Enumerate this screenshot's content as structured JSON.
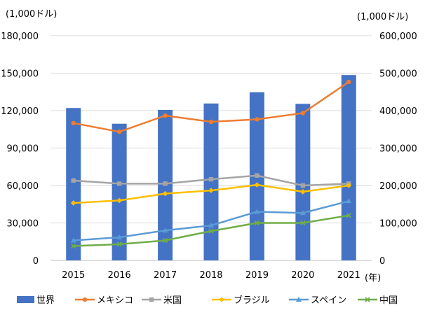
{
  "chart_data": {
    "type": "bar+line",
    "left_unit": "(1,000ドル)",
    "right_unit": "(1,000ドル)",
    "x_unit": "(年)",
    "categories": [
      "2015",
      "2016",
      "2017",
      "2018",
      "2019",
      "2020",
      "2021"
    ],
    "left_ticks": [
      "0",
      "30,000",
      "60,000",
      "90,000",
      "120,000",
      "150,000",
      "180,000"
    ],
    "right_ticks": [
      "0",
      "100,000",
      "200,000",
      "300,000",
      "400,000",
      "500,000",
      "600,000"
    ],
    "left_ylim": [
      0,
      180000
    ],
    "right_ylim": [
      0,
      600000
    ],
    "bar_series": {
      "name": "世界",
      "axis": "right",
      "color": "#4472C4",
      "values": [
        407000,
        365000,
        402000,
        419000,
        449000,
        418000,
        495000
      ]
    },
    "line_series": [
      {
        "name": "メキシコ",
        "axis": "left",
        "color": "#ED7D31",
        "marker": "circle",
        "values": [
          110000,
          103000,
          116000,
          111000,
          113000,
          118000,
          143000
        ]
      },
      {
        "name": "米国",
        "axis": "left",
        "color": "#A5A5A5",
        "marker": "square",
        "values": [
          64000,
          61500,
          61500,
          65000,
          68000,
          60000,
          61500
        ]
      },
      {
        "name": "ブラジル",
        "axis": "left",
        "color": "#FFC000",
        "marker": "diamond",
        "values": [
          46000,
          48000,
          53500,
          56000,
          60500,
          55000,
          60000
        ]
      },
      {
        "name": "スペイン",
        "axis": "left",
        "color": "#5B9BD5",
        "marker": "triangle",
        "values": [
          16000,
          18500,
          24000,
          28000,
          39000,
          38000,
          47500
        ]
      },
      {
        "name": "中国",
        "axis": "left",
        "color": "#70AD47",
        "marker": "x",
        "values": [
          11500,
          13000,
          16000,
          23500,
          30000,
          30000,
          36000
        ]
      }
    ],
    "gridlines": true,
    "legend_position": "bottom"
  }
}
